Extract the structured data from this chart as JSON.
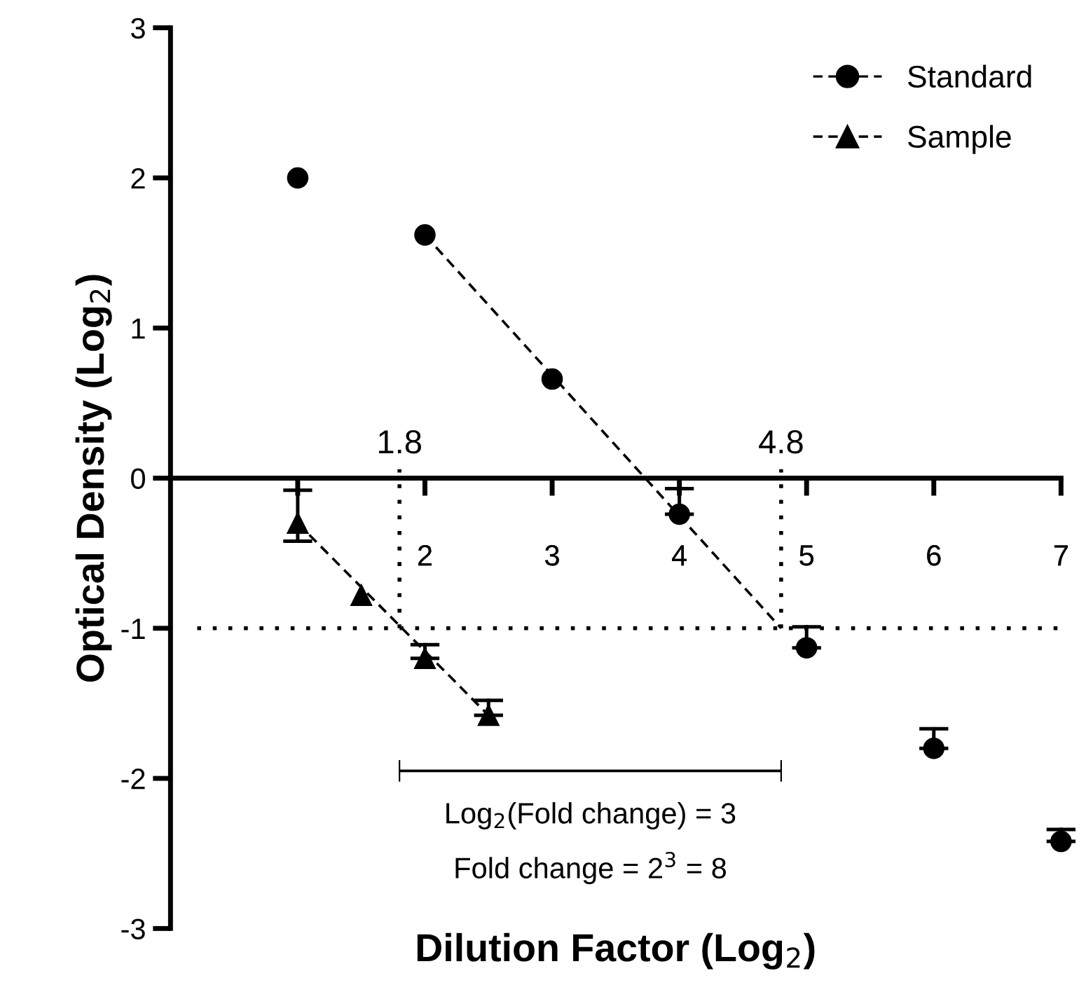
{
  "chart_data": {
    "type": "scatter",
    "xlabel": "Dilution Factor (Log$_{2}$)",
    "ylabel": "Optical Density (Log$_{2}$)",
    "xlim": [
      0,
      7
    ],
    "ylim": [
      -3,
      3
    ],
    "xticks": [
      {
        "value": 1,
        "label": null
      },
      2,
      3,
      4,
      5,
      6,
      7
    ],
    "yticks": [
      -3,
      -2,
      -1,
      0,
      1,
      2,
      3
    ],
    "series": [
      {
        "name": "Standard",
        "type": "scatter",
        "marker": "circle",
        "color": "#000000",
        "x": [
          1,
          2,
          3,
          4,
          5,
          6,
          7
        ],
        "values": [
          2.0,
          1.62,
          0.66,
          -0.24,
          -1.13,
          -1.8,
          -2.42
        ],
        "errors": [
          null,
          null,
          null,
          [
            -0.24,
            -0.07
          ],
          [
            -1.13,
            -0.99
          ],
          [
            -1.8,
            -1.67
          ],
          [
            -2.42,
            -2.34
          ]
        ]
      },
      {
        "name": "Sample",
        "type": "scatter",
        "marker": "triangle",
        "color": "#000000",
        "x": [
          1,
          1.5,
          2,
          2.5
        ],
        "values": [
          -0.3,
          -0.78,
          -1.2,
          -1.58
        ],
        "errors": [
          [
            -0.42,
            -0.08
          ],
          null,
          [
            -1.2,
            -1.11
          ],
          [
            -1.58,
            -1.48
          ]
        ]
      },
      {
        "type": "line",
        "color": "#000000",
        "x": [
          2,
          4.8
        ],
        "values": [
          1.62,
          -1.0
        ]
      },
      {
        "type": "line",
        "color": "#000000",
        "x": [
          1,
          2.5
        ],
        "values": [
          -0.3,
          -1.58
        ]
      }
    ],
    "line_style": "dashed",
    "ref_lines": [
      {
        "axis": "y",
        "value": -1,
        "line_style": "dotted",
        "color": "#000000"
      },
      {
        "axis": "x",
        "value": 1.8,
        "label": "1.8",
        "line_style": "dotted",
        "color": "#000000"
      },
      {
        "axis": "x",
        "value": 4.8,
        "label": "4.8",
        "line_style": "dotted",
        "color": "#000000"
      }
    ],
    "annotations": [
      "Log$_{2}$(Fold change) = 3",
      "Fold change = 2$^{3}$ = 8"
    ],
    "legend": "top right",
    "grid": false
  }
}
